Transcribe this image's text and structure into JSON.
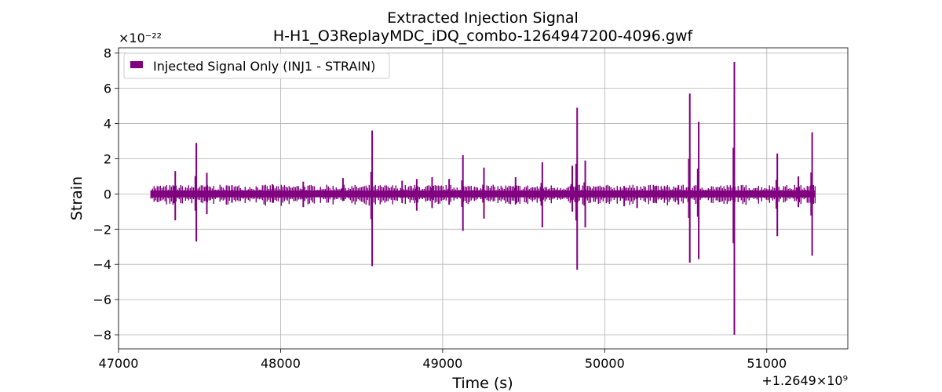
{
  "chart_data": {
    "type": "line",
    "title": "Extracted Injection Signal",
    "subtitle": "H-H1_O3ReplayMDC_iDQ_combo-1264947200-4096.gwf",
    "xlabel": "Time (s)",
    "ylabel": "Strain",
    "x_offset_text": "+1.2649×10⁹",
    "y_scale_text": "×10⁻²²",
    "xlim": [
      47000,
      51500
    ],
    "ylim": [
      -8.8,
      8.3
    ],
    "x_ticks": [
      47000,
      48000,
      49000,
      50000,
      51000
    ],
    "x_tick_labels": [
      "47000",
      "48000",
      "49000",
      "50000",
      "51000"
    ],
    "y_ticks": [
      -8,
      -6,
      -4,
      -2,
      0,
      2,
      4,
      6,
      8
    ],
    "y_tick_labels": [
      "−8",
      "−6",
      "−4",
      "−2",
      "0",
      "2",
      "4",
      "6",
      "8"
    ],
    "grid": true,
    "legend_position": "top-left",
    "series": [
      {
        "name": "Injected Signal Only (INJ1 - STRAIN)",
        "color": "#800080",
        "data_range": [
          47200,
          51296
        ],
        "baseline_envelope": 0.35,
        "spikes": [
          {
            "x": 47350,
            "high": 1.3,
            "low": -1.5
          },
          {
            "x": 47480,
            "high": 2.9,
            "low": -2.7
          },
          {
            "x": 47545,
            "high": 1.2,
            "low": -1.15
          },
          {
            "x": 47700,
            "high": 0.5,
            "low": -0.5
          },
          {
            "x": 47950,
            "high": 0.55,
            "low": -0.5
          },
          {
            "x": 48140,
            "high": 0.7,
            "low": -0.75
          },
          {
            "x": 48385,
            "high": 0.9,
            "low": -0.4
          },
          {
            "x": 48565,
            "high": 3.6,
            "low": -4.1
          },
          {
            "x": 48750,
            "high": 0.75,
            "low": -0.5
          },
          {
            "x": 48840,
            "high": 0.85,
            "low": -0.95
          },
          {
            "x": 48935,
            "high": 0.95,
            "low": -0.8
          },
          {
            "x": 49040,
            "high": 0.85,
            "low": -0.6
          },
          {
            "x": 49125,
            "high": 2.2,
            "low": -2.1
          },
          {
            "x": 49255,
            "high": 1.5,
            "low": -1.4
          },
          {
            "x": 49450,
            "high": 0.95,
            "low": -0.6
          },
          {
            "x": 49615,
            "high": 1.8,
            "low": -1.9
          },
          {
            "x": 49800,
            "high": 1.6,
            "low": -1.0
          },
          {
            "x": 49830,
            "high": 4.9,
            "low": -4.3
          },
          {
            "x": 49880,
            "high": 1.9,
            "low": -1.9
          },
          {
            "x": 50120,
            "high": 0.45,
            "low": -0.7
          },
          {
            "x": 50200,
            "high": 0.45,
            "low": -0.8
          },
          {
            "x": 50310,
            "high": 0.45,
            "low": -0.5
          },
          {
            "x": 50455,
            "high": 0.5,
            "low": -0.6
          },
          {
            "x": 50525,
            "high": 5.7,
            "low": -3.9
          },
          {
            "x": 50580,
            "high": 4.1,
            "low": -3.7
          },
          {
            "x": 50800,
            "high": 7.5,
            "low": -8.0
          },
          {
            "x": 51065,
            "high": 2.3,
            "low": -2.4
          },
          {
            "x": 51195,
            "high": 1.0,
            "low": -0.75
          },
          {
            "x": 51280,
            "high": 3.5,
            "low": -3.5
          }
        ]
      }
    ]
  }
}
